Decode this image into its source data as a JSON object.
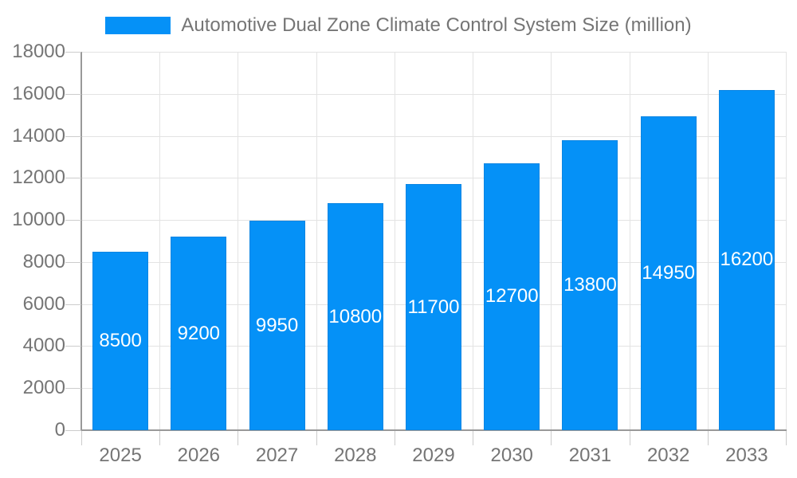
{
  "chart_data": {
    "type": "bar",
    "title": "Automotive Dual Zone Climate Control System Size (million)",
    "legend_position": "top",
    "categories": [
      "2025",
      "2026",
      "2027",
      "2028",
      "2029",
      "2030",
      "2031",
      "2032",
      "2033"
    ],
    "values": [
      8500,
      9200,
      9950,
      10800,
      11700,
      12700,
      13800,
      14950,
      16200
    ],
    "value_labels": [
      "8500",
      "9200",
      "9950",
      "10800",
      "11700",
      "12700",
      "13800",
      "14950",
      "16200"
    ],
    "xlabel": "",
    "ylabel": "",
    "ylim": [
      0,
      18000
    ],
    "yticks": [
      0,
      2000,
      4000,
      6000,
      8000,
      10000,
      12000,
      14000,
      16000,
      18000
    ],
    "grid": true,
    "colors": {
      "bar_fill": "#0591f7",
      "bar_edge": "#0b85e2",
      "value_label_text": "#ffffff",
      "gridline": "#e3e3e3",
      "axis_line": "#999999",
      "tick_mark": "#cccccc",
      "axis_text": "#757575",
      "legend_text": "#757575",
      "background": "#ffffff"
    }
  }
}
